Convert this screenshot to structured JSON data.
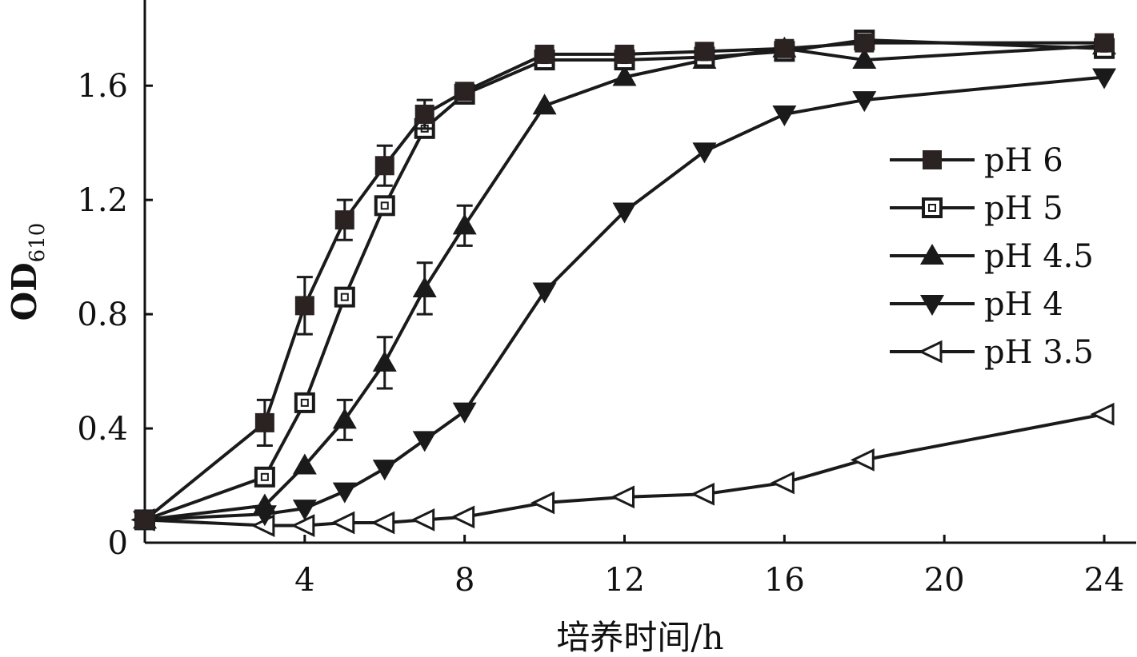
{
  "chart_data": {
    "type": "line",
    "title": "",
    "xlabel": "培养时间/h",
    "ylabel": "OD",
    "ylabel_sub": "610",
    "xlim": [
      0,
      24.8
    ],
    "ylim": [
      0,
      1.9
    ],
    "xticks": [
      4,
      8,
      12,
      16,
      20,
      24
    ],
    "xtick_labels": [
      "4",
      "8",
      "12",
      "16",
      "20",
      "24"
    ],
    "yticks": [
      0,
      0.4,
      0.8,
      1.2,
      1.6
    ],
    "ytick_labels": [
      "0",
      "0.4",
      "0.8",
      "1.2",
      "1.6"
    ],
    "grid": false,
    "legend_position": "right",
    "series": [
      {
        "name": "pH 6",
        "marker": "square-filled",
        "points": [
          [
            0,
            0.08
          ],
          [
            3,
            0.42
          ],
          [
            4,
            0.83
          ],
          [
            5,
            1.13
          ],
          [
            6,
            1.32
          ],
          [
            7,
            1.5
          ],
          [
            8,
            1.58
          ],
          [
            10,
            1.71
          ],
          [
            12,
            1.71
          ],
          [
            14,
            1.72
          ],
          [
            16,
            1.73
          ],
          [
            18,
            1.75
          ],
          [
            24,
            1.75
          ]
        ],
        "errors": [
          [
            3,
            0.08
          ],
          [
            4,
            0.1
          ],
          [
            5,
            0.07
          ],
          [
            6,
            0.07
          ],
          [
            7,
            0.05
          ]
        ]
      },
      {
        "name": "pH 5",
        "marker": "square-open",
        "points": [
          [
            0,
            0.08
          ],
          [
            3,
            0.23
          ],
          [
            4,
            0.49
          ],
          [
            5,
            0.86
          ],
          [
            6,
            1.18
          ],
          [
            7,
            1.45
          ],
          [
            8,
            1.57
          ],
          [
            10,
            1.69
          ],
          [
            12,
            1.69
          ],
          [
            14,
            1.7
          ],
          [
            16,
            1.72
          ],
          [
            18,
            1.76
          ],
          [
            24,
            1.73
          ]
        ],
        "errors": []
      },
      {
        "name": "pH 4.5",
        "marker": "triangle-up-filled",
        "points": [
          [
            0,
            0.08
          ],
          [
            3,
            0.13
          ],
          [
            4,
            0.27
          ],
          [
            5,
            0.43
          ],
          [
            6,
            0.63
          ],
          [
            7,
            0.89
          ],
          [
            8,
            1.11
          ],
          [
            10,
            1.53
          ],
          [
            12,
            1.63
          ],
          [
            14,
            1.69
          ],
          [
            16,
            1.73
          ],
          [
            18,
            1.69
          ],
          [
            24,
            1.74
          ]
        ],
        "errors": [
          [
            5,
            0.07
          ],
          [
            6,
            0.09
          ],
          [
            7,
            0.09
          ],
          [
            8,
            0.07
          ]
        ]
      },
      {
        "name": "pH 4",
        "marker": "triangle-down-filled",
        "points": [
          [
            0,
            0.08
          ],
          [
            3,
            0.1
          ],
          [
            4,
            0.12
          ],
          [
            5,
            0.18
          ],
          [
            6,
            0.26
          ],
          [
            7,
            0.36
          ],
          [
            8,
            0.46
          ],
          [
            10,
            0.88
          ],
          [
            12,
            1.16
          ],
          [
            14,
            1.37
          ],
          [
            16,
            1.5
          ],
          [
            18,
            1.55
          ],
          [
            24,
            1.63
          ]
        ],
        "errors": []
      },
      {
        "name": "pH 3.5",
        "marker": "triangle-left-open",
        "points": [
          [
            0,
            0.08
          ],
          [
            3,
            0.06
          ],
          [
            4,
            0.06
          ],
          [
            5,
            0.07
          ],
          [
            6,
            0.07
          ],
          [
            7,
            0.08
          ],
          [
            8,
            0.09
          ],
          [
            10,
            0.14
          ],
          [
            12,
            0.16
          ],
          [
            14,
            0.17
          ],
          [
            16,
            0.21
          ],
          [
            18,
            0.29
          ],
          [
            24,
            0.45
          ]
        ],
        "errors": []
      }
    ]
  }
}
